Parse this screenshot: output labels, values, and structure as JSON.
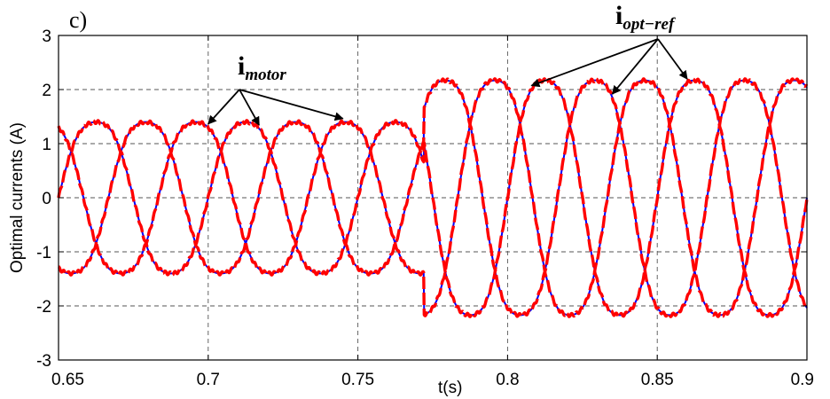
{
  "chart_data": {
    "type": "line",
    "panel_label": "c)",
    "xlabel": "t(s)",
    "ylabel": "Optimal currents (A)",
    "xlim": [
      0.65,
      0.9
    ],
    "ylim": [
      -3,
      3
    ],
    "xticks": [
      0.65,
      0.7,
      0.75,
      0.8,
      0.85,
      0.9
    ],
    "xtick_labels": [
      "0.65",
      "0.7",
      "0.75",
      "0.8",
      "0.85",
      "0.9"
    ],
    "yticks": [
      -3,
      -2,
      -1,
      0,
      1,
      2,
      3
    ],
    "ytick_labels": [
      "-3",
      "-2",
      "-1",
      "0",
      "1",
      "2",
      "3"
    ],
    "grid": true,
    "step_time": 0.772,
    "before_step": {
      "amplitude": 1.5,
      "period": 0.05,
      "ripple_amplitude": 0.1
    },
    "after_step": {
      "amplitude": 2.35,
      "period": 0.05,
      "ripple_amplitude": 0.18
    },
    "phases_deg": [
      0,
      120,
      240
    ],
    "annotations": [
      {
        "main": "i",
        "sub": "motor",
        "points_to_t": [
          0.7,
          0.717,
          0.745
        ]
      },
      {
        "main": "i",
        "sub": "opt−ref",
        "points_to_t": [
          0.808,
          0.835,
          0.86
        ]
      }
    ],
    "series": [
      {
        "color": "#0000ff",
        "style": "solid"
      },
      {
        "color": "#ff0000",
        "style": "dashed"
      }
    ]
  }
}
